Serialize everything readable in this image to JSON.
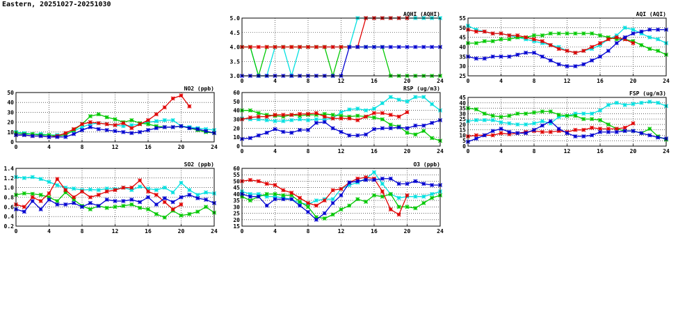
{
  "page_title": "Eastern, 20251027-20251030",
  "series_colors": {
    "cyan": "#00e0e0",
    "green": "#00c800",
    "red": "#e00000",
    "blue": "#0000d0"
  },
  "chart_data": [
    {
      "id": "no2",
      "type": "line",
      "title": "NO2 (ppb)",
      "xlim": [
        0,
        24
      ],
      "ylim": [
        0,
        50
      ],
      "xticks": [
        "0",
        "4",
        "8",
        "12",
        "16",
        "20",
        "24"
      ],
      "yticks": [
        "0",
        "10",
        "20",
        "30",
        "40",
        "50"
      ],
      "grid": true,
      "x": [
        0,
        1,
        2,
        3,
        4,
        5,
        6,
        7,
        8,
        9,
        10,
        11,
        12,
        13,
        14,
        15,
        16,
        17,
        18,
        19,
        20,
        21,
        22,
        23,
        24
      ],
      "series": [
        {
          "color": "cyan",
          "values": [
            10,
            9,
            8,
            8,
            7,
            7,
            8,
            11,
            15,
            18,
            19,
            18,
            17,
            16,
            17,
            18,
            20,
            21,
            22,
            22,
            16,
            15,
            14,
            13,
            12
          ]
        },
        {
          "color": "green",
          "values": [
            9,
            8,
            8,
            7,
            7,
            6,
            7,
            12,
            18,
            26,
            28,
            25,
            23,
            20,
            22,
            19,
            18,
            16,
            15,
            15,
            16,
            14,
            12,
            10,
            9
          ]
        },
        {
          "color": "red",
          "values": [
            7,
            7,
            6,
            6,
            5,
            6,
            9,
            13,
            18,
            20,
            19,
            18,
            17,
            19,
            14,
            18,
            22,
            28,
            35,
            44,
            47,
            36,
            null,
            null,
            null
          ]
        },
        {
          "color": "blue",
          "values": [
            7,
            7,
            6,
            6,
            5,
            5,
            5,
            8,
            12,
            15,
            13,
            12,
            11,
            10,
            9,
            10,
            12,
            14,
            15,
            15,
            16,
            14,
            13,
            11,
            9
          ]
        }
      ]
    },
    {
      "id": "so2",
      "type": "line",
      "title": "SO2 (ppb)",
      "xlim": [
        0,
        24
      ],
      "ylim": [
        0.2,
        1.4
      ],
      "xticks": [
        "0",
        "4",
        "8",
        "12",
        "16",
        "20",
        "24"
      ],
      "yticks": [
        "0.2",
        "0.4",
        "0.6",
        "0.8",
        "1.0",
        "1.2",
        "1.4"
      ],
      "grid": true,
      "x": [
        0,
        1,
        2,
        3,
        4,
        5,
        6,
        7,
        8,
        9,
        10,
        11,
        12,
        13,
        14,
        15,
        16,
        17,
        18,
        19,
        20,
        21,
        22,
        23,
        24
      ],
      "series": [
        {
          "color": "cyan",
          "values": [
            1.22,
            1.2,
            1.22,
            1.18,
            1.12,
            1.05,
            1.0,
            0.98,
            0.95,
            0.96,
            0.95,
            0.98,
            0.97,
            1.0,
            0.95,
            1.02,
            0.98,
            0.95,
            1.0,
            0.9,
            1.1,
            0.95,
            0.85,
            0.9,
            0.88
          ]
        },
        {
          "color": "green",
          "values": [
            0.85,
            0.88,
            0.87,
            0.85,
            0.8,
            0.72,
            0.9,
            0.75,
            0.62,
            0.55,
            0.62,
            0.58,
            0.6,
            0.62,
            0.65,
            0.58,
            0.55,
            0.45,
            0.38,
            0.52,
            0.42,
            0.45,
            0.5,
            0.6,
            0.48
          ]
        },
        {
          "color": "red",
          "values": [
            0.65,
            0.6,
            0.8,
            0.72,
            0.88,
            1.18,
            0.95,
            0.8,
            0.92,
            0.8,
            0.85,
            0.92,
            0.95,
            1.0,
            1.0,
            1.15,
            0.92,
            0.85,
            0.7,
            0.55,
            0.65,
            null,
            null,
            null,
            null
          ]
        },
        {
          "color": "blue",
          "values": [
            0.55,
            0.5,
            0.72,
            0.55,
            0.75,
            0.65,
            0.65,
            0.68,
            0.6,
            0.68,
            0.62,
            0.75,
            0.72,
            0.72,
            0.75,
            0.7,
            0.8,
            0.65,
            0.78,
            0.7,
            0.8,
            0.85,
            0.78,
            0.75,
            0.68
          ]
        }
      ]
    },
    {
      "id": "aqhi",
      "type": "line",
      "title": "AQHI (AQHI)",
      "xlim": [
        0,
        24
      ],
      "ylim": [
        3.0,
        5.0
      ],
      "xticks": [
        "0",
        "4",
        "8",
        "12",
        "16",
        "20",
        "24"
      ],
      "yticks": [
        "3.0",
        "3.5",
        "4.0",
        "4.5",
        "5.0"
      ],
      "grid": true,
      "x": [
        0,
        1,
        2,
        3,
        4,
        5,
        6,
        7,
        8,
        9,
        10,
        11,
        12,
        13,
        14,
        15,
        16,
        17,
        18,
        19,
        20,
        21,
        22,
        23,
        24
      ],
      "series": [
        {
          "color": "cyan",
          "values": [
            4,
            4,
            3,
            3,
            4,
            4,
            3,
            4,
            4,
            4,
            4,
            4,
            4,
            4,
            5,
            5,
            5,
            5,
            5,
            5,
            5,
            5,
            5,
            5,
            5
          ]
        },
        {
          "color": "green",
          "values": [
            4,
            4,
            3,
            4,
            4,
            4,
            4,
            4,
            4,
            4,
            4,
            3,
            4,
            4,
            4,
            4,
            4,
            4,
            3,
            3,
            3,
            3,
            3,
            3,
            3
          ]
        },
        {
          "color": "red",
          "values": [
            4,
            4,
            4,
            4,
            4,
            4,
            4,
            4,
            4,
            4,
            4,
            4,
            4,
            4,
            4,
            5,
            5,
            5,
            5,
            5,
            5,
            null,
            null,
            null,
            null
          ]
        },
        {
          "color": "blue",
          "values": [
            3,
            3,
            3,
            3,
            3,
            3,
            3,
            3,
            3,
            3,
            3,
            3,
            3,
            4,
            4,
            4,
            4,
            4,
            4,
            4,
            4,
            4,
            4,
            4,
            4
          ]
        }
      ]
    },
    {
      "id": "rsp",
      "type": "line",
      "title": "RSP (ug/m3)",
      "xlim": [
        0,
        24
      ],
      "ylim": [
        0,
        60
      ],
      "xticks": [
        "0",
        "4",
        "8",
        "12",
        "16",
        "20",
        "24"
      ],
      "yticks": [
        "0",
        "10",
        "20",
        "30",
        "40",
        "50",
        "60"
      ],
      "grid": true,
      "x": [
        0,
        1,
        2,
        3,
        4,
        5,
        6,
        7,
        8,
        9,
        10,
        11,
        12,
        13,
        14,
        15,
        16,
        17,
        18,
        19,
        20,
        21,
        22,
        23,
        24
      ],
      "series": [
        {
          "color": "cyan",
          "values": [
            31,
            30,
            30,
            29,
            28,
            28,
            29,
            30,
            29,
            30,
            30,
            31,
            38,
            41,
            42,
            40,
            42,
            48,
            55,
            52,
            50,
            55,
            55,
            47,
            40
          ]
        },
        {
          "color": "green",
          "values": [
            40,
            40,
            37,
            35,
            34,
            33,
            35,
            34,
            35,
            35,
            36,
            35,
            34,
            33,
            34,
            33,
            32,
            30,
            24,
            22,
            15,
            13,
            17,
            9,
            6
          ]
        },
        {
          "color": "red",
          "values": [
            30,
            32,
            33,
            33,
            35,
            35,
            35,
            36,
            36,
            37,
            33,
            31,
            31,
            31,
            29,
            33,
            37,
            37,
            35,
            33,
            38,
            null,
            null,
            null,
            null
          ]
        },
        {
          "color": "blue",
          "values": [
            8,
            9,
            12,
            15,
            19,
            16,
            15,
            18,
            18,
            26,
            27,
            20,
            16,
            12,
            12,
            13,
            19,
            20,
            20,
            21,
            20,
            23,
            23,
            26,
            29
          ]
        }
      ]
    },
    {
      "id": "o3",
      "type": "line",
      "title": "O3 (ppb)",
      "xlim": [
        0,
        24
      ],
      "ylim": [
        15,
        60
      ],
      "xticks": [
        "0",
        "4",
        "8",
        "12",
        "16",
        "20",
        "24"
      ],
      "yticks": [
        "15",
        "20",
        "25",
        "30",
        "35",
        "40",
        "45",
        "50",
        "55",
        "60"
      ],
      "grid": true,
      "x": [
        0,
        1,
        2,
        3,
        4,
        5,
        6,
        7,
        8,
        9,
        10,
        11,
        12,
        13,
        14,
        15,
        16,
        17,
        18,
        19,
        20,
        21,
        22,
        23,
        24
      ],
      "series": [
        {
          "color": "cyan",
          "values": [
            42,
            40,
            40,
            38,
            38,
            37,
            36,
            33,
            32,
            35,
            36,
            36,
            44,
            47,
            49,
            52,
            57,
            48,
            40,
            37,
            38,
            38,
            38,
            40,
            42
          ]
        },
        {
          "color": "green",
          "values": [
            38,
            35,
            38,
            40,
            40,
            39,
            39,
            34,
            30,
            22,
            21,
            24,
            28,
            31,
            36,
            34,
            39,
            38,
            40,
            30,
            30,
            29,
            33,
            37,
            39
          ]
        },
        {
          "color": "red",
          "values": [
            50,
            51,
            50,
            48,
            47,
            43,
            41,
            37,
            33,
            31,
            35,
            43,
            44,
            49,
            52,
            53,
            52,
            42,
            28,
            24,
            39,
            null,
            null,
            null,
            null
          ]
        },
        {
          "color": "blue",
          "values": [
            40,
            38,
            38,
            31,
            36,
            36,
            36,
            31,
            26,
            20,
            25,
            33,
            39,
            49,
            50,
            51,
            51,
            52,
            52,
            48,
            48,
            50,
            48,
            47,
            47
          ]
        }
      ]
    },
    {
      "id": "aqi",
      "type": "line",
      "title": "AQI (AQI)",
      "xlim": [
        0,
        24
      ],
      "ylim": [
        25,
        55
      ],
      "xticks": [
        "0",
        "4",
        "8",
        "12",
        "16",
        "20",
        "24"
      ],
      "yticks": [
        "25",
        "30",
        "35",
        "40",
        "45",
        "50",
        "55"
      ],
      "grid": true,
      "x": [
        0,
        1,
        2,
        3,
        4,
        5,
        6,
        7,
        8,
        9,
        10,
        11,
        12,
        13,
        14,
        15,
        16,
        17,
        18,
        19,
        20,
        21,
        22,
        23,
        24
      ],
      "series": [
        {
          "color": "cyan",
          "values": [
            51,
            49,
            48,
            47,
            47,
            46,
            45,
            44,
            43,
            42,
            41,
            40,
            38,
            37,
            38,
            39,
            41,
            44,
            46,
            50,
            49,
            47,
            45,
            44,
            42
          ]
        },
        {
          "color": "green",
          "values": [
            42,
            42,
            43,
            43,
            44,
            44,
            45,
            45,
            46,
            46,
            47,
            47,
            47,
            47,
            47,
            47,
            46,
            45,
            44,
            44,
            43,
            41,
            39,
            38,
            36
          ]
        },
        {
          "color": "red",
          "values": [
            49,
            48,
            48,
            47,
            47,
            46,
            46,
            45,
            44,
            43,
            41,
            39,
            38,
            37,
            38,
            40,
            42,
            44,
            45,
            44,
            42,
            null,
            null,
            null,
            null
          ]
        },
        {
          "color": "blue",
          "values": [
            35,
            34,
            34,
            35,
            35,
            35,
            36,
            37,
            37,
            35,
            33,
            31,
            30,
            30,
            31,
            33,
            35,
            38,
            42,
            45,
            47,
            48,
            49,
            49,
            49
          ]
        }
      ]
    },
    {
      "id": "fsp",
      "type": "line",
      "title": "FSP (ug/m3)",
      "xlim": [
        0,
        24
      ],
      "ylim": [
        0,
        45
      ],
      "xticks": [
        "0",
        "4",
        "8",
        "12",
        "16",
        "20",
        "24"
      ],
      "yticks": [
        "0",
        "5",
        "10",
        "15",
        "20",
        "25",
        "30",
        "35",
        "40",
        "45"
      ],
      "grid": true,
      "x": [
        0,
        1,
        2,
        3,
        4,
        5,
        6,
        7,
        8,
        9,
        10,
        11,
        12,
        13,
        14,
        15,
        16,
        17,
        18,
        19,
        20,
        21,
        22,
        23,
        24
      ],
      "series": [
        {
          "color": "cyan",
          "values": [
            23,
            24,
            24,
            24,
            22,
            21,
            20,
            20,
            21,
            23,
            21,
            27,
            28,
            30,
            30,
            30,
            33,
            38,
            40,
            38,
            39,
            40,
            41,
            40,
            37
          ]
        },
        {
          "color": "green",
          "values": [
            35,
            34,
            30,
            28,
            27,
            28,
            30,
            30,
            31,
            32,
            32,
            29,
            28,
            28,
            25,
            25,
            24,
            20,
            16,
            14,
            14,
            12,
            16,
            9,
            6
          ]
        },
        {
          "color": "red",
          "values": [
            9,
            10,
            10,
            10,
            12,
            11,
            12,
            13,
            14,
            13,
            13,
            14,
            13,
            15,
            15,
            17,
            16,
            16,
            16,
            17,
            21,
            null,
            null,
            null,
            null
          ]
        },
        {
          "color": "blue",
          "values": [
            4,
            7,
            10,
            14,
            16,
            13,
            12,
            12,
            15,
            19,
            23,
            16,
            12,
            9,
            9,
            10,
            13,
            13,
            13,
            14,
            14,
            12,
            10,
            8,
            7
          ]
        }
      ]
    }
  ]
}
